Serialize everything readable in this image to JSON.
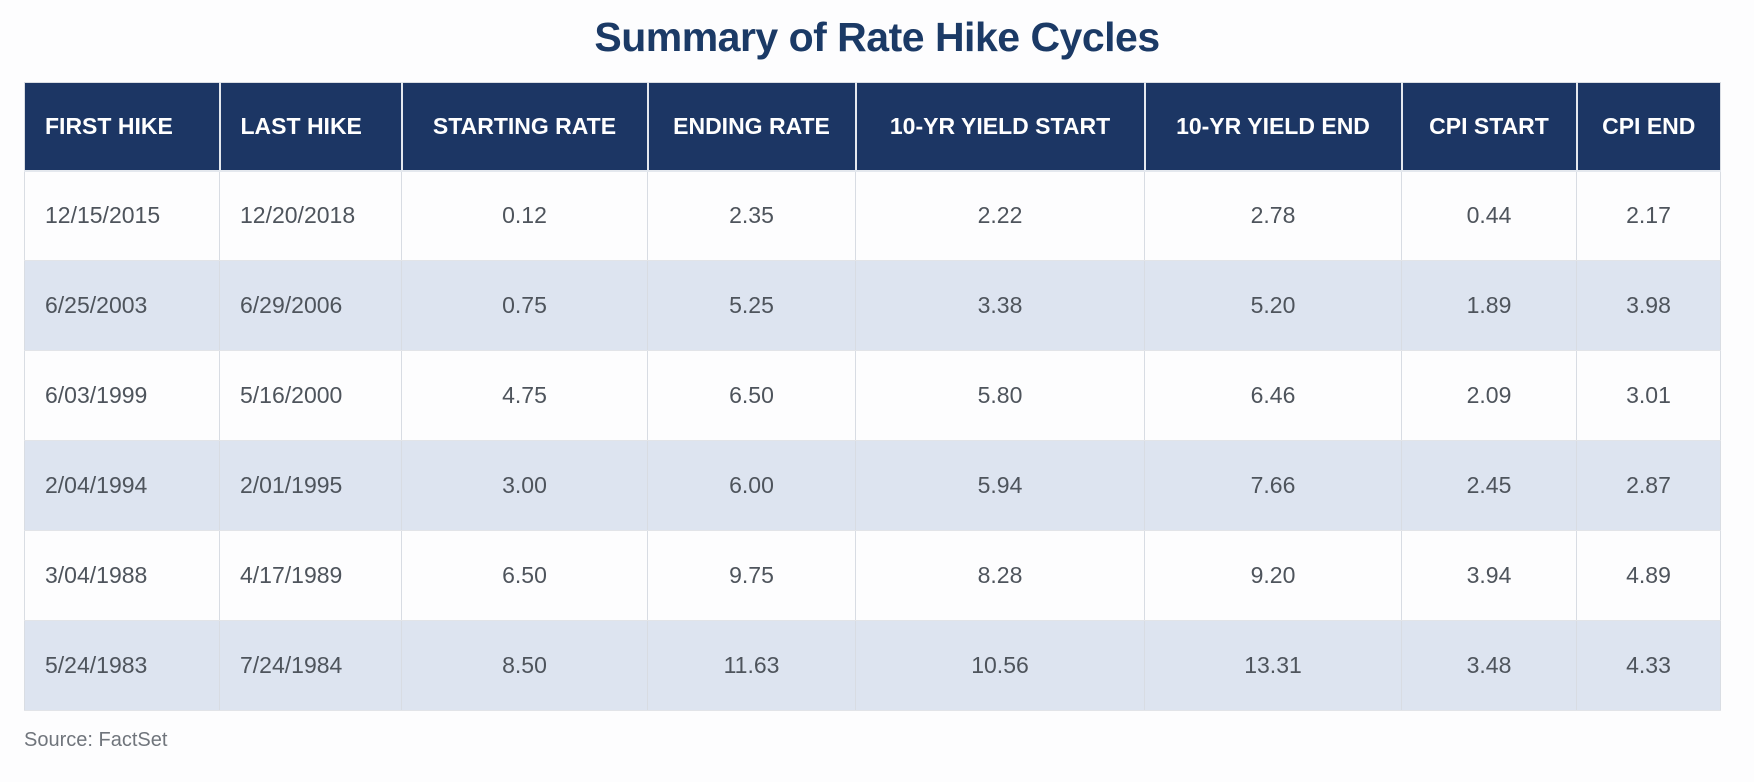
{
  "title": "Summary of Rate Hike Cycles",
  "source": "Source: FactSet",
  "colors": {
    "title": "#1b3a66",
    "header_bg": "#1c3664",
    "header_text": "#ffffff",
    "row_bg": "#fdfdfe",
    "row_alt_bg": "#dde4f0",
    "cell_text": "#4e545c",
    "source_text": "#70757c"
  },
  "chart_data": {
    "type": "table",
    "title": "Summary of Rate Hike Cycles",
    "columns": [
      "FIRST HIKE",
      "LAST HIKE",
      "STARTING RATE",
      "ENDING RATE",
      "10-YR YIELD START",
      "10-YR YIELD END",
      "CPI START",
      "CPI END"
    ],
    "rows": [
      [
        "12/15/2015",
        "12/20/2018",
        "0.12",
        "2.35",
        "2.22",
        "2.78",
        "0.44",
        "2.17"
      ],
      [
        "6/25/2003",
        "6/29/2006",
        "0.75",
        "5.25",
        "3.38",
        "5.20",
        "1.89",
        "3.98"
      ],
      [
        "6/03/1999",
        "5/16/2000",
        "4.75",
        "6.50",
        "5.80",
        "6.46",
        "2.09",
        "3.01"
      ],
      [
        "2/04/1994",
        "2/01/1995",
        "3.00",
        "6.00",
        "5.94",
        "7.66",
        "2.45",
        "2.87"
      ],
      [
        "3/04/1988",
        "4/17/1989",
        "6.50",
        "9.75",
        "8.28",
        "9.20",
        "3.94",
        "4.89"
      ],
      [
        "5/24/1983",
        "7/24/1984",
        "8.50",
        "11.63",
        "10.56",
        "13.31",
        "3.48",
        "4.33"
      ]
    ],
    "source": "Source: FactSet",
    "layout_hints": {
      "striped_rows": true,
      "date_columns_left_aligned": true,
      "numeric_columns_centered": true
    }
  }
}
